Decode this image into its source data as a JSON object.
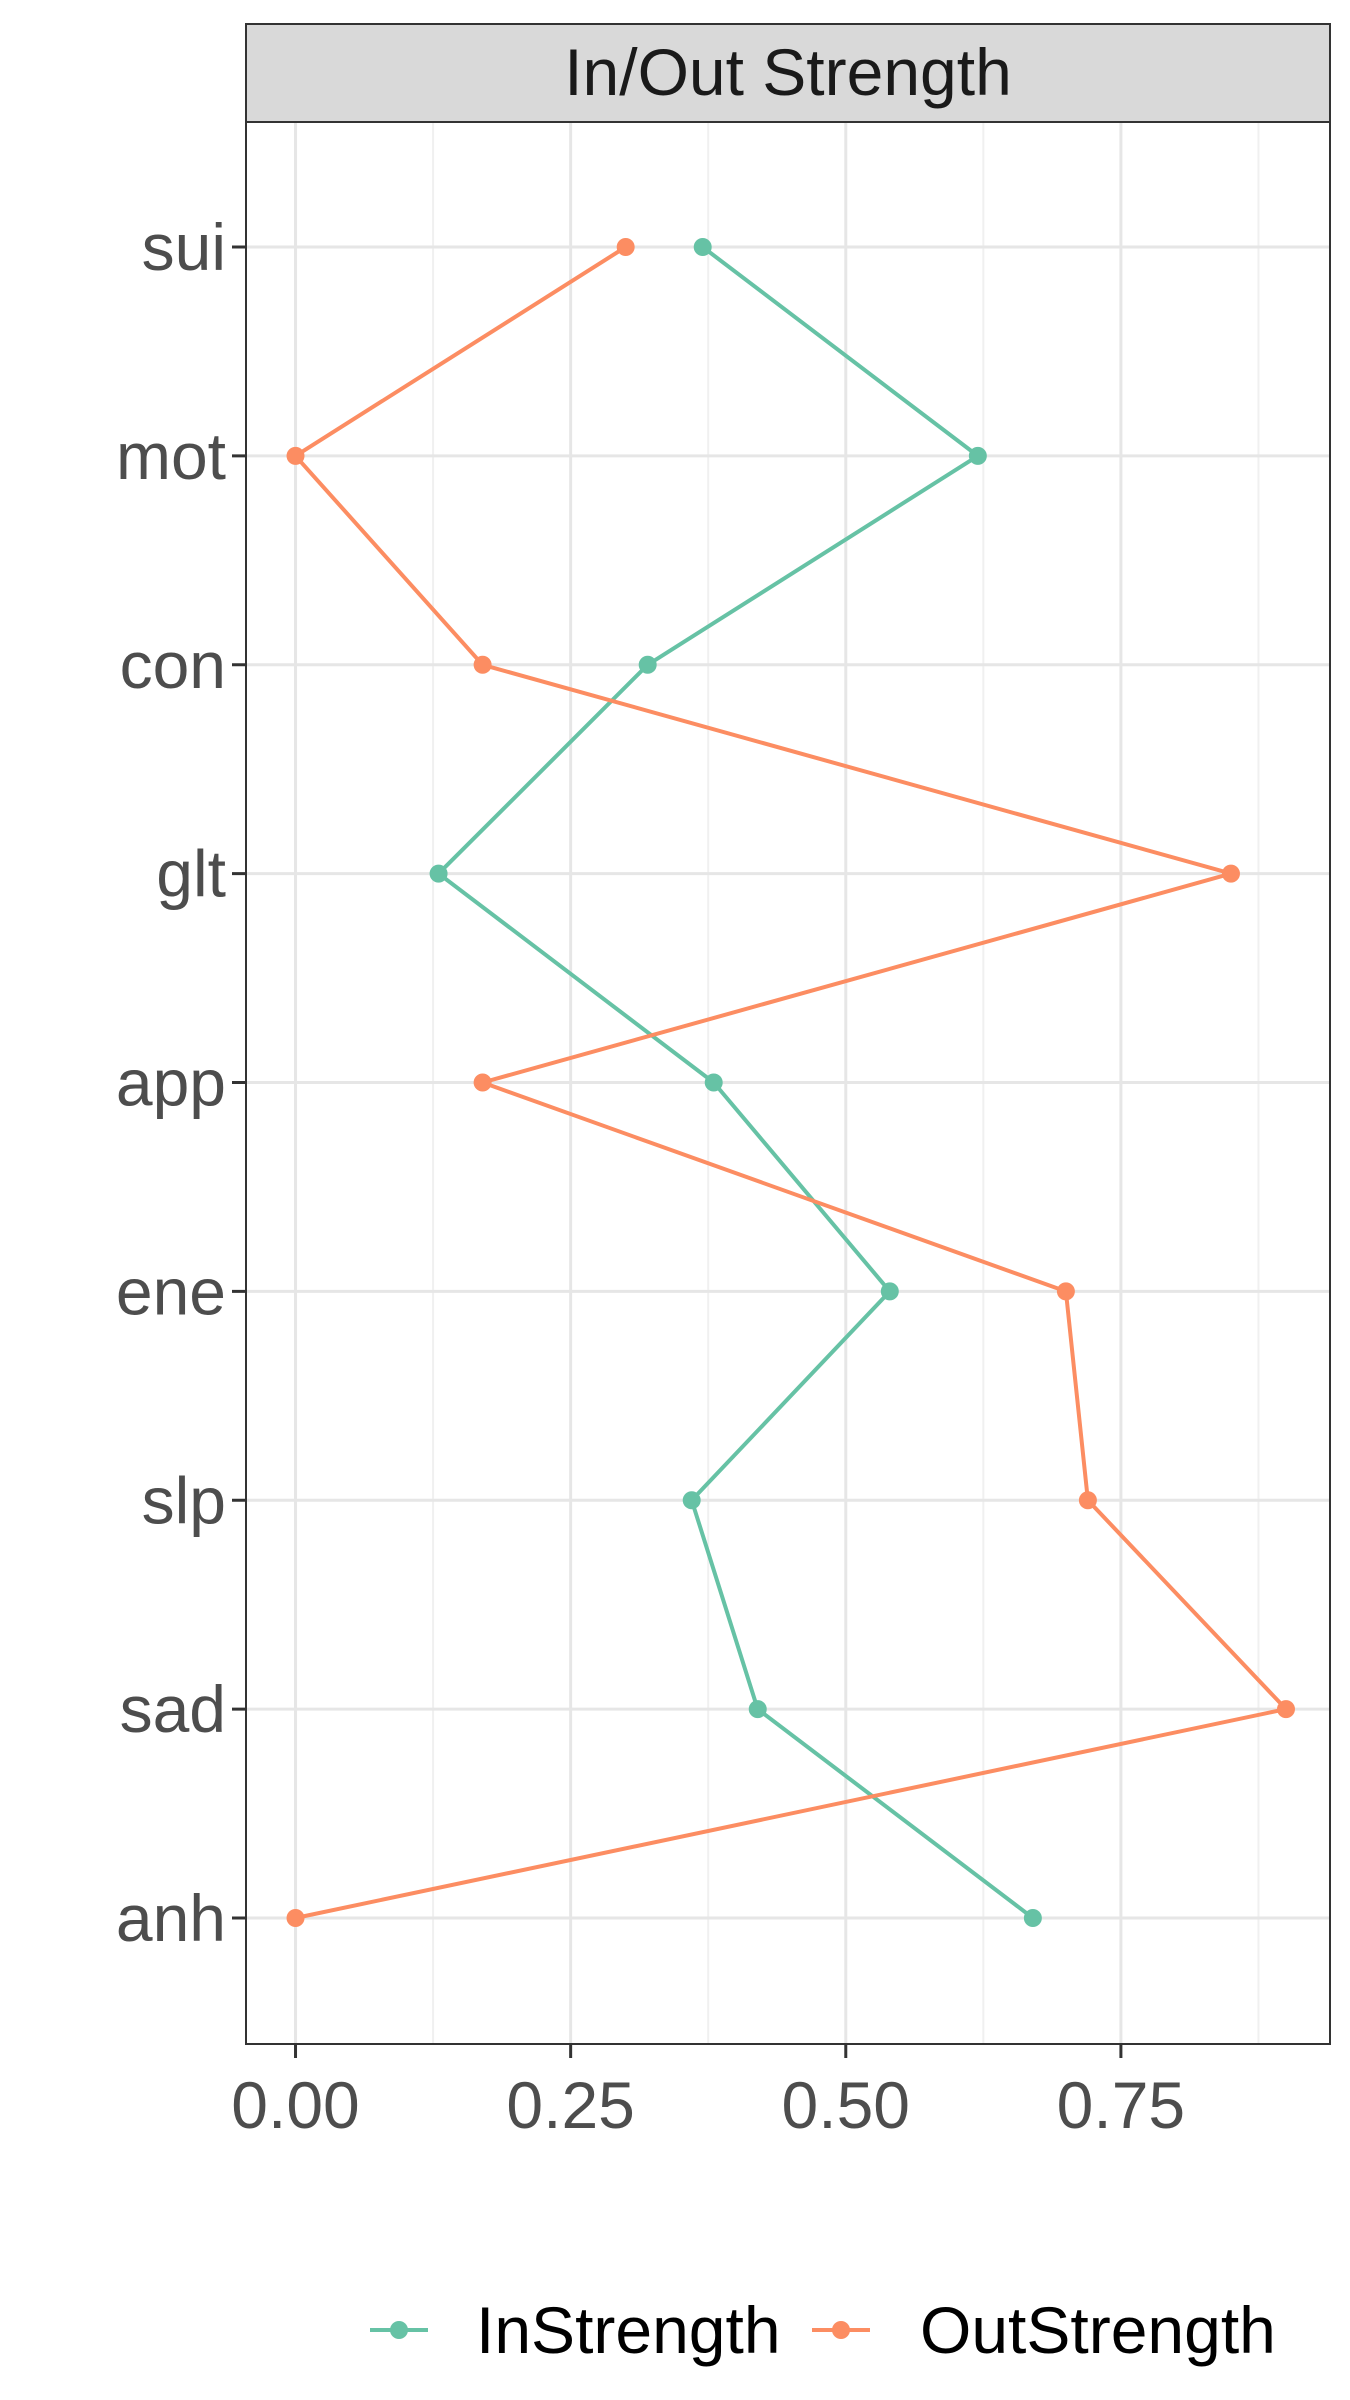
{
  "chart_data": {
    "type": "line",
    "title": "In/Out Strength",
    "xlabel": "",
    "ylabel": "",
    "categories": [
      "sui",
      "mot",
      "con",
      "glt",
      "app",
      "ene",
      "slp",
      "sad",
      "anh"
    ],
    "x_ticks": [
      "0.00",
      "0.25",
      "0.50",
      "0.75"
    ],
    "xlim": [
      -0.045,
      0.94
    ],
    "grid": true,
    "legend_position": "bottom",
    "series": [
      {
        "name": "InStrength",
        "color": "#66c2a5",
        "values": [
          0.37,
          0.62,
          0.32,
          0.13,
          0.38,
          0.54,
          0.36,
          0.42,
          0.67
        ]
      },
      {
        "name": "OutStrength",
        "color": "#fc8d62",
        "values": [
          0.3,
          0.0,
          0.17,
          0.85,
          0.17,
          0.7,
          0.72,
          0.9,
          0.0
        ]
      }
    ]
  }
}
